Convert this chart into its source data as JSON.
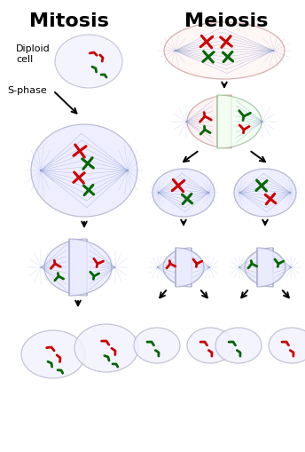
{
  "title_mitosis": "Mitosis",
  "title_meiosis": "Meiosis",
  "label_diploid": "Diploid\ncell",
  "label_sphase": "S-phase",
  "bg_color": "#ffffff",
  "chr_red": "#cc0000",
  "chr_green": "#006600",
  "spindle_color": "#8899cc",
  "title_fontsize": 16,
  "label_fontsize": 8
}
